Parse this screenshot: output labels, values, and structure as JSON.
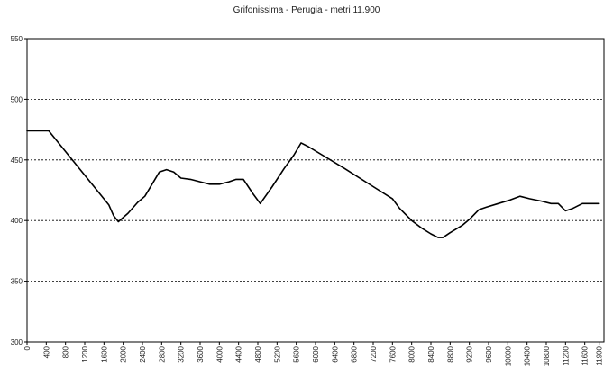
{
  "chart_data": {
    "type": "line",
    "title": "Grifonissima - Perugia - metri 11.900",
    "xlabel": "",
    "ylabel": "",
    "xlim": [
      0,
      12000
    ],
    "ylim": [
      300,
      550
    ],
    "x_ticks": [
      0,
      400,
      800,
      1200,
      1600,
      2000,
      2400,
      2800,
      3200,
      3600,
      4000,
      4400,
      4800,
      5200,
      5600,
      6000,
      6400,
      6800,
      7200,
      7600,
      8000,
      8400,
      8800,
      9200,
      9600,
      10000,
      10400,
      10800,
      11200,
      11600,
      11900
    ],
    "y_ticks": [
      300,
      350,
      400,
      450,
      500,
      550
    ],
    "grid": "horizontal-dashed",
    "legend": "none",
    "line_color": "#000000",
    "series": [
      {
        "x": [
          0,
          350,
          450,
          1700,
          1800,
          1900,
          2100,
          2300,
          2450,
          2600,
          2750,
          2900,
          3050,
          3200,
          3400,
          3600,
          3800,
          4000,
          4200,
          4350,
          4500,
          4700,
          4850,
          5100,
          5350,
          5550,
          5700,
          5850,
          6600,
          7200,
          7600,
          7750,
          8000,
          8200,
          8400,
          8550,
          8650,
          8800,
          9050,
          9200,
          9400,
          9550,
          9800,
          10050,
          10250,
          10450,
          10700,
          10900,
          11050,
          11200,
          11350,
          11550,
          11700,
          11900
        ],
        "y": [
          474,
          474,
          474,
          413,
          404,
          399,
          406,
          415,
          420,
          430,
          440,
          442,
          440,
          435,
          434,
          432,
          430,
          430,
          432,
          434,
          434,
          422,
          414,
          428,
          443,
          454,
          464,
          461,
          443,
          428,
          418,
          410,
          400,
          394,
          389,
          386,
          386,
          390,
          396,
          401,
          409,
          411,
          414,
          417,
          420,
          418,
          416,
          414,
          414,
          408,
          410,
          414,
          414,
          414
        ]
      }
    ]
  }
}
